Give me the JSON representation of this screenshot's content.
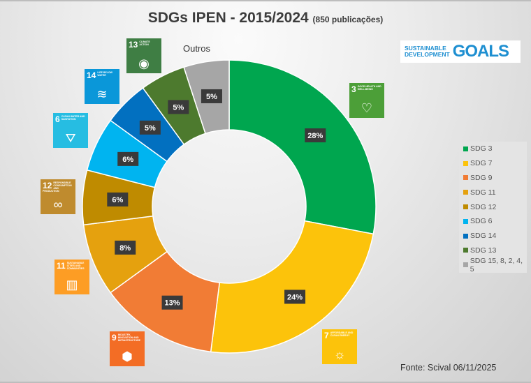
{
  "title": "SDGs IPEN - 2015/2024",
  "subtitle": "(850 publicações)",
  "outros_label": "Outros",
  "source": "Fonte: Scival 06/11/2025",
  "logo": {
    "line1": "SUSTAINABLE",
    "line2": "DEVELOPMENT",
    "line3": "GOALS"
  },
  "chart_data": {
    "type": "pie",
    "donut": true,
    "categories": [
      "SDG 3",
      "SDG 7",
      "SDG 9",
      "SDG 11",
      "SDG 12",
      "SDG 6",
      "SDG 14",
      "SDG 13",
      "SDG 15, 8, 2, 4, 5"
    ],
    "values": [
      28,
      24,
      13,
      8,
      6,
      6,
      5,
      5,
      5
    ],
    "labels": [
      "28%",
      "24%",
      "13%",
      "8%",
      "6%",
      "6%",
      "5%",
      "5%",
      "5%"
    ],
    "colors": [
      "#00a64f",
      "#fcc30b",
      "#f17c35",
      "#e5a10e",
      "#bf8b00",
      "#00b4f0",
      "#0270c0",
      "#4d7a2e",
      "#a6a6a6"
    ],
    "legend": "right"
  },
  "icons": [
    {
      "num": "3",
      "text": "Good health and well-being",
      "color": "#4c9f38",
      "glyph": "♡"
    },
    {
      "num": "7",
      "text": "Affordable and clean energy",
      "color": "#fcc30b",
      "glyph": "☼"
    },
    {
      "num": "9",
      "text": "Industry, innovation and infrastructure",
      "color": "#f36d25",
      "glyph": "⬢"
    },
    {
      "num": "11",
      "text": "Sustainable cities and communities",
      "color": "#fd9d24",
      "glyph": "▥"
    },
    {
      "num": "12",
      "text": "Responsible consumption and production",
      "color": "#bf8b2e",
      "glyph": "∞"
    },
    {
      "num": "6",
      "text": "Clean water and sanitation",
      "color": "#26bde2",
      "glyph": "⛛"
    },
    {
      "num": "14",
      "text": "Life below water",
      "color": "#0a97d9",
      "glyph": "≋"
    },
    {
      "num": "13",
      "text": "Climate action",
      "color": "#3f7e44",
      "glyph": "◉"
    }
  ]
}
